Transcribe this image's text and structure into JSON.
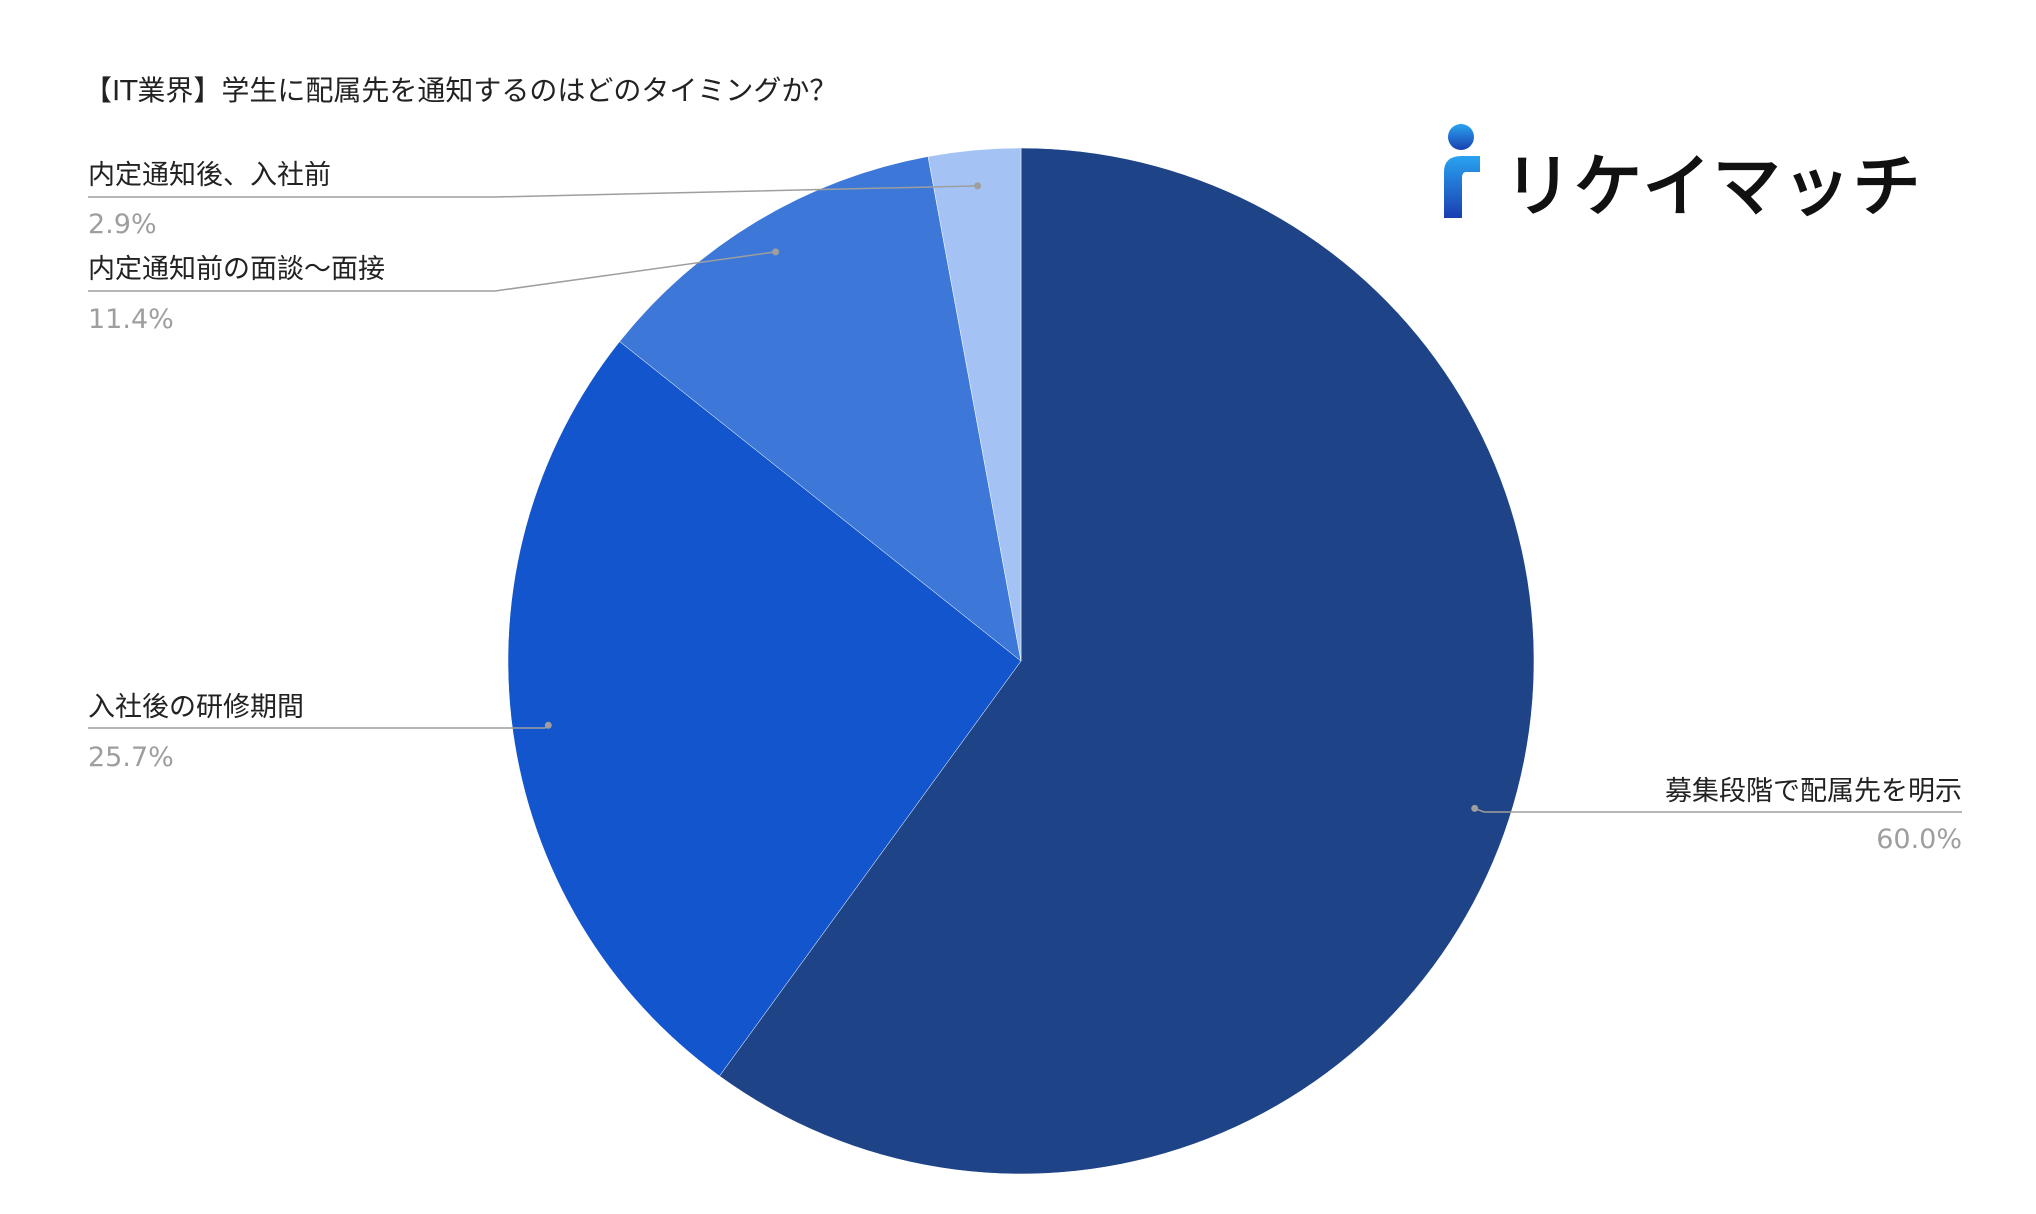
{
  "chart_data": {
    "type": "pie",
    "title": "【IT業界】学生に配属先を通知するのはどのタイミングか？",
    "slices": [
      {
        "label": "募集段階で配属先を明示",
        "value": 60.0,
        "display": "60.0%",
        "color": "#1e4487"
      },
      {
        "label": "入社後の研修期間",
        "value": 25.7,
        "display": "25.7%",
        "color": "#1255cc"
      },
      {
        "label": "内定通知前の面談〜面接",
        "value": 11.4,
        "display": "11.4%",
        "color": "#3d78d8"
      },
      {
        "label": "内定通知後、入社前",
        "value": 2.9,
        "display": "2.9%",
        "color": "#a4c2f4"
      }
    ]
  },
  "logo": {
    "text": "リケイマッチ",
    "accent_color": "#1a73e8"
  }
}
